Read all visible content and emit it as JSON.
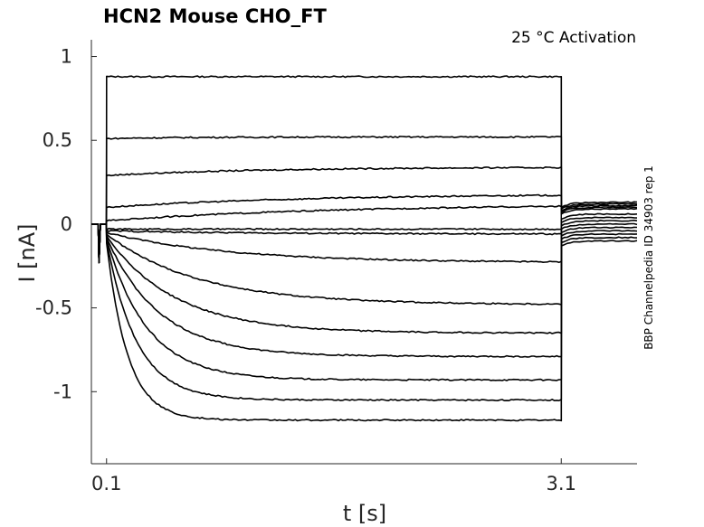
{
  "chart_data": {
    "type": "line",
    "title": "HCN2  Mouse  CHO_FT",
    "subtitle": "25 °C  Activation",
    "side_label": "BBP Channelpedia ID 34903 rep 1",
    "xlabel": "t [s]",
    "ylabel": "I [nA]",
    "xlim": [
      0.0,
      3.6
    ],
    "ylim": [
      -1.43,
      1.1
    ],
    "xticks": [
      0.1,
      3.1
    ],
    "xtick_labels": [
      "0.1",
      "3.1"
    ],
    "yticks": [
      1,
      0.5,
      0,
      -0.5,
      -1
    ],
    "ytick_labels": [
      "1",
      "0.5",
      "0",
      "-0.5",
      "-1"
    ],
    "grid": false,
    "step_start_s": 0.1,
    "step_end_s": 3.1,
    "capacitive_spike_nA": -0.23,
    "series": [
      {
        "initial": 0.88,
        "steady": 0.88,
        "tau": 0.1,
        "tail": 0.13
      },
      {
        "initial": 0.51,
        "steady": 0.52,
        "tau": 0.5,
        "tail": 0.12
      },
      {
        "initial": 0.29,
        "steady": 0.34,
        "tau": 1.0,
        "tail": 0.11
      },
      {
        "initial": 0.1,
        "steady": 0.18,
        "tau": 1.3,
        "tail": 0.1
      },
      {
        "initial": 0.02,
        "steady": 0.12,
        "tau": 1.5,
        "tail": 0.09
      },
      {
        "initial": -0.03,
        "steady": -0.03,
        "tau": 0.5,
        "tail": 0.06
      },
      {
        "initial": -0.04,
        "steady": -0.06,
        "tau": 1.0,
        "tail": 0.04
      },
      {
        "initial": -0.05,
        "steady": -0.23,
        "tau": 0.8,
        "tail": 0.02
      },
      {
        "initial": -0.06,
        "steady": -0.48,
        "tau": 0.6,
        "tail": 0.0
      },
      {
        "initial": -0.07,
        "steady": -0.65,
        "tau": 0.45,
        "tail": -0.02
      },
      {
        "initial": -0.08,
        "steady": -0.79,
        "tau": 0.35,
        "tail": -0.04
      },
      {
        "initial": -0.09,
        "steady": -0.93,
        "tau": 0.27,
        "tail": -0.06
      },
      {
        "initial": -0.1,
        "steady": -1.05,
        "tau": 0.2,
        "tail": -0.08
      },
      {
        "initial": -0.11,
        "steady": -1.17,
        "tau": 0.14,
        "tail": -0.1
      }
    ]
  }
}
